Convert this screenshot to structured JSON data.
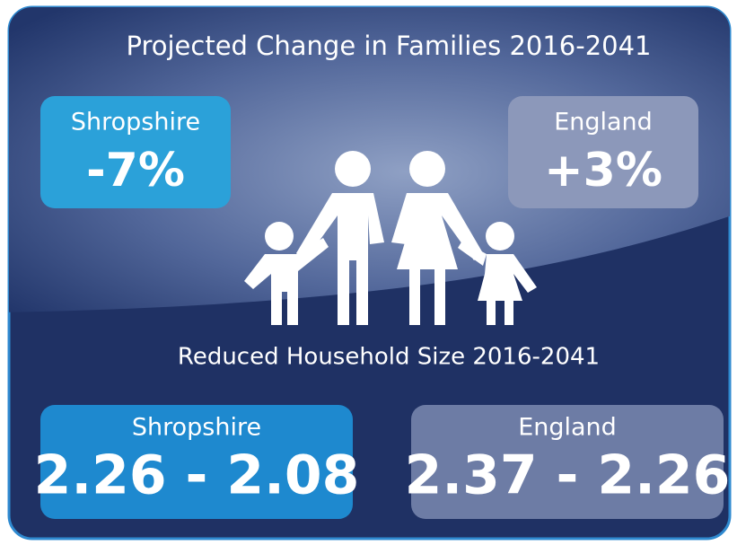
{
  "title": "Projected Change in Families 2016-2041",
  "families_change": [
    {
      "region": "Shropshire",
      "value": "-7%"
    },
    {
      "region": "England",
      "value": "+3%"
    }
  ],
  "household_heading": "Reduced Household Size 2016-2041",
  "household_size": [
    {
      "region": "Shropshire",
      "value": "2.26 - 2.08"
    },
    {
      "region": "England",
      "value": "2.37 - 2.26"
    }
  ]
}
